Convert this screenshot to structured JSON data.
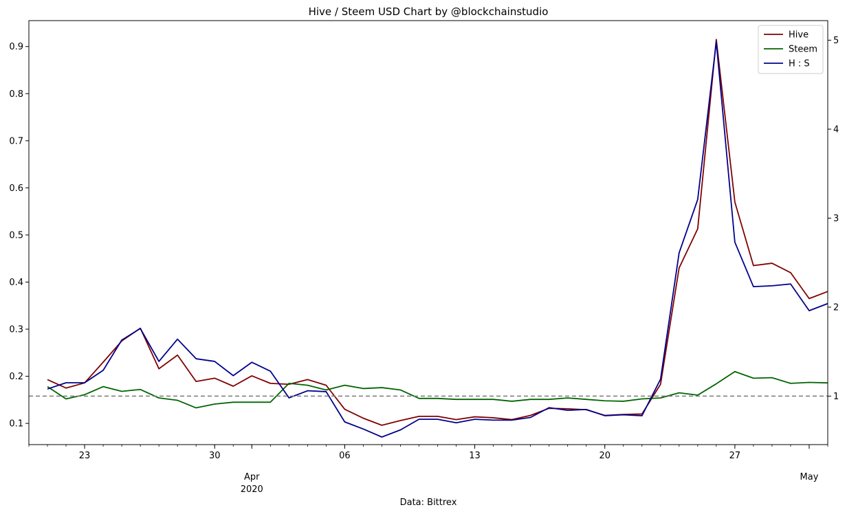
{
  "chart_data": {
    "type": "line",
    "title": "Hive / Steem USD Chart by @blockchainstudio",
    "xlabel": "Data: Bittrex",
    "ylabel": "",
    "x": [
      "2020-03-21",
      "2020-03-22",
      "2020-03-23",
      "2020-03-24",
      "2020-03-25",
      "2020-03-26",
      "2020-03-27",
      "2020-03-28",
      "2020-03-29",
      "2020-03-30",
      "2020-03-31",
      "2020-04-01",
      "2020-04-02",
      "2020-04-03",
      "2020-04-04",
      "2020-04-05",
      "2020-04-06",
      "2020-04-07",
      "2020-04-08",
      "2020-04-09",
      "2020-04-10",
      "2020-04-11",
      "2020-04-12",
      "2020-04-13",
      "2020-04-14",
      "2020-04-15",
      "2020-04-16",
      "2020-04-17",
      "2020-04-18",
      "2020-04-19",
      "2020-04-20",
      "2020-04-21",
      "2020-04-22",
      "2020-04-23",
      "2020-04-24",
      "2020-04-25",
      "2020-04-26",
      "2020-04-27",
      "2020-04-28",
      "2020-04-29",
      "2020-04-30",
      "2020-05-01",
      "2020-05-02",
      "2020-05-03"
    ],
    "x_range": [
      "2020-03-20",
      "2020-05-02"
    ],
    "x_major_ticks": [
      {
        "date": "2020-03-23",
        "label": "23"
      },
      {
        "date": "2020-03-30",
        "label": "30"
      },
      {
        "date": "2020-04-06",
        "label": "06"
      },
      {
        "date": "2020-04-13",
        "label": "13"
      },
      {
        "date": "2020-04-20",
        "label": "20"
      },
      {
        "date": "2020-04-27",
        "label": "27"
      }
    ],
    "x_month_labels": [
      {
        "date": "2020-04-01",
        "label": "Apr",
        "sublabel": "2020"
      },
      {
        "date": "2020-05-01",
        "label": "May",
        "sublabel": ""
      }
    ],
    "ylim_left": [
      0.055,
      0.955
    ],
    "yticks_left": [
      0.1,
      0.2,
      0.3,
      0.4,
      0.5,
      0.6,
      0.7,
      0.8,
      0.9
    ],
    "ylim_right": [
      0.455,
      5.22
    ],
    "yticks_right": [
      1,
      2,
      3,
      4,
      5
    ],
    "reference_line": {
      "axis": "right",
      "value": 1,
      "style": "dashed",
      "color": "#808080"
    },
    "grid": false,
    "legend_position": "top-right",
    "series": [
      {
        "name": "Hive",
        "axis": "left",
        "color": "#800000",
        "values": [
          0.193,
          0.175,
          0.186,
          0.23,
          0.275,
          0.302,
          0.216,
          0.245,
          0.189,
          0.196,
          0.179,
          0.201,
          0.185,
          0.183,
          0.193,
          0.181,
          0.13,
          0.111,
          0.096,
          0.106,
          0.115,
          0.115,
          0.108,
          0.114,
          0.112,
          0.108,
          0.117,
          0.132,
          0.131,
          0.129,
          0.117,
          0.119,
          0.12,
          0.183,
          0.43,
          0.513,
          0.915,
          0.57,
          0.435,
          0.44,
          0.42,
          0.365,
          0.38,
          0.375
        ]
      },
      {
        "name": "Steem",
        "axis": "left",
        "color": "#006400",
        "values": [
          0.178,
          0.152,
          0.161,
          0.178,
          0.168,
          0.172,
          0.154,
          0.149,
          0.133,
          0.141,
          0.145,
          0.145,
          0.145,
          0.185,
          0.181,
          0.171,
          0.181,
          0.174,
          0.176,
          0.171,
          0.153,
          0.153,
          0.151,
          0.151,
          0.151,
          0.147,
          0.151,
          0.151,
          0.154,
          0.151,
          0.148,
          0.147,
          0.152,
          0.154,
          0.165,
          0.16,
          0.184,
          0.21,
          0.196,
          0.197,
          0.185,
          0.187,
          0.186,
          0.186
        ]
      },
      {
        "name": "H : S",
        "axis": "right",
        "color": "#00008b",
        "values": [
          1.08,
          1.15,
          1.15,
          1.29,
          1.63,
          1.76,
          1.39,
          1.64,
          1.42,
          1.39,
          1.23,
          1.38,
          1.28,
          0.98,
          1.06,
          1.05,
          0.71,
          0.63,
          0.54,
          0.62,
          0.74,
          0.74,
          0.7,
          0.74,
          0.73,
          0.73,
          0.76,
          0.87,
          0.84,
          0.85,
          0.78,
          0.79,
          0.78,
          1.19,
          2.61,
          3.21,
          4.98,
          2.73,
          2.23,
          2.24,
          2.26,
          1.96,
          2.04,
          2.02
        ]
      }
    ]
  }
}
